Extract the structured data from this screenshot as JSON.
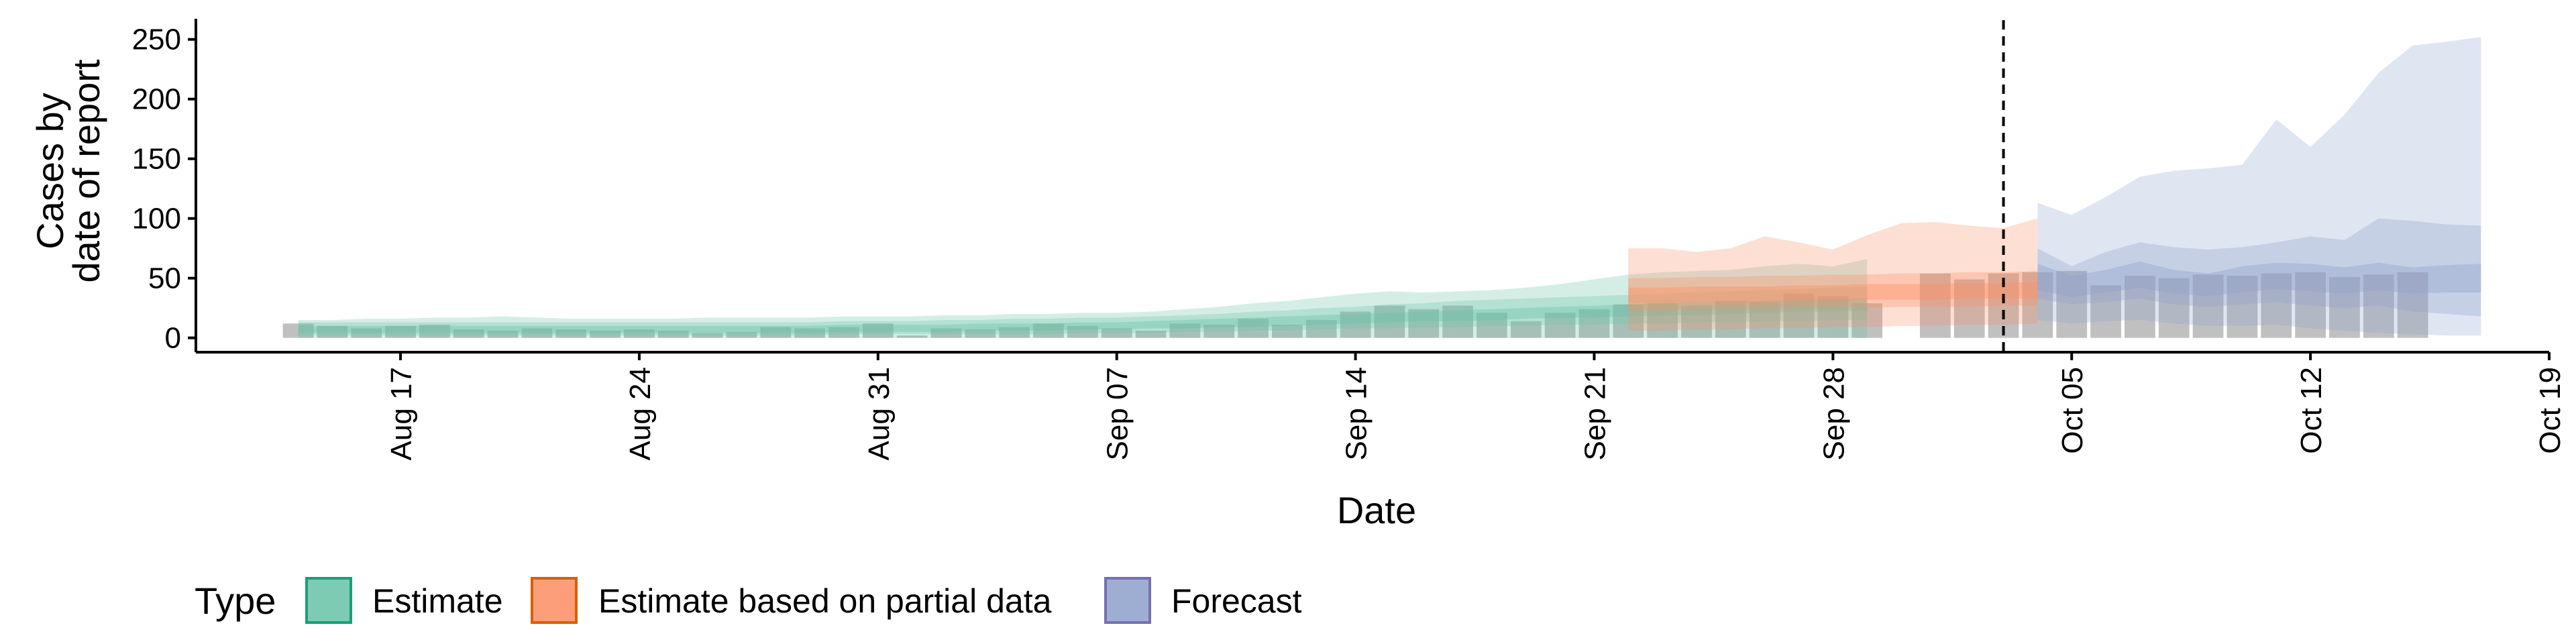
{
  "chart_data": {
    "type": "bar+area",
    "xlabel": "Date",
    "ylabel_lines": [
      "Cases by",
      "date of report"
    ],
    "ylim": [
      -12,
      265
    ],
    "y_ticks": [
      0,
      50,
      100,
      150,
      200,
      250
    ],
    "x_ticks": [
      {
        "date": "2020-08-17",
        "label": "Aug 17"
      },
      {
        "date": "2020-08-24",
        "label": "Aug 24"
      },
      {
        "date": "2020-08-31",
        "label": "Aug 31"
      },
      {
        "date": "2020-09-07",
        "label": "Sep 07"
      },
      {
        "date": "2020-09-14",
        "label": "Sep 14"
      },
      {
        "date": "2020-09-21",
        "label": "Sep 21"
      },
      {
        "date": "2020-09-28",
        "label": "Sep 28"
      },
      {
        "date": "2020-10-05",
        "label": "Oct 05"
      },
      {
        "date": "2020-10-12",
        "label": "Oct 12"
      },
      {
        "date": "2020-10-19",
        "label": "Oct 19"
      }
    ],
    "xlim": [
      "2020-08-11",
      "2020-10-19"
    ],
    "forecast_date": "2020-10-03",
    "bar_color": "#bdbdbd",
    "bars": {
      "start_date": "2020-08-14",
      "values": [
        12,
        10,
        8,
        10,
        11,
        7,
        6,
        8,
        7,
        6,
        7,
        6,
        4,
        5,
        9,
        8,
        9,
        12,
        2,
        8,
        7,
        9,
        12,
        10,
        8,
        6,
        12,
        11,
        16,
        11,
        15,
        22,
        27,
        24,
        27,
        21,
        14,
        21,
        24,
        28,
        29,
        27,
        31,
        30,
        37,
        35,
        29,
        0,
        54,
        49,
        54,
        55,
        56,
        44,
        52,
        50,
        53,
        52,
        54,
        55,
        51,
        53,
        55
      ]
    },
    "series": [
      {
        "name": "Estimate",
        "color": "#1b9e77",
        "fill": "#66c2a5",
        "start_date": "2020-08-14",
        "median": [
          7,
          7,
          7,
          7,
          7,
          7,
          7,
          7,
          7,
          7,
          7,
          7,
          7,
          7,
          7,
          7,
          8,
          8,
          8,
          8,
          9,
          9,
          9,
          10,
          10,
          11,
          11,
          12,
          13,
          14,
          15,
          16,
          17,
          18,
          19,
          19,
          20,
          21,
          22,
          23,
          24,
          24,
          25,
          26,
          27,
          27,
          28
        ],
        "inner_low": [
          4,
          4,
          4,
          4,
          4,
          4,
          4,
          4,
          4,
          4,
          4,
          4,
          4,
          4,
          4,
          4,
          5,
          5,
          5,
          5,
          6,
          6,
          6,
          7,
          7,
          8,
          8,
          9,
          9,
          10,
          11,
          12,
          13,
          14,
          14,
          15,
          16,
          17,
          17,
          18,
          19,
          19,
          20,
          21,
          22,
          22,
          23
        ],
        "inner_high": [
          10,
          10,
          10,
          10,
          10,
          10,
          10,
          10,
          10,
          10,
          10,
          10,
          10,
          10,
          10,
          10,
          11,
          11,
          11,
          11,
          12,
          12,
          12,
          13,
          13,
          14,
          15,
          16,
          17,
          18,
          19,
          20,
          21,
          22,
          23,
          24,
          25,
          26,
          27,
          28,
          29,
          30,
          30,
          31,
          32,
          32,
          33
        ],
        "mid_low": [
          2,
          2,
          2,
          2,
          2,
          2,
          2,
          2,
          2,
          2,
          2,
          2,
          2,
          2,
          2,
          2,
          3,
          3,
          3,
          3,
          3,
          3,
          3,
          4,
          4,
          4,
          5,
          5,
          6,
          6,
          7,
          8,
          8,
          9,
          9,
          10,
          10,
          11,
          11,
          12,
          12,
          13,
          13,
          14,
          14,
          15,
          15
        ],
        "mid_high": [
          13,
          13,
          13,
          13,
          13,
          13,
          13,
          13,
          13,
          13,
          13,
          13,
          13,
          13,
          13,
          13,
          14,
          14,
          14,
          15,
          15,
          16,
          16,
          17,
          17,
          18,
          19,
          20,
          22,
          23,
          25,
          26,
          28,
          29,
          31,
          32,
          33,
          34,
          35,
          36,
          37,
          38,
          39,
          40,
          41,
          42,
          43
        ],
        "outer_low": [
          0,
          0,
          0,
          0,
          0,
          0,
          0,
          0,
          0,
          0,
          0,
          0,
          0,
          0,
          0,
          0,
          0,
          0,
          0,
          0,
          0,
          0,
          0,
          0,
          0,
          0,
          0,
          0,
          0,
          0,
          0,
          0,
          0,
          0,
          0,
          0,
          0,
          0,
          0,
          0,
          0,
          0,
          0,
          0,
          0,
          0,
          0
        ],
        "outer_high": [
          15,
          15,
          16,
          16,
          17,
          17,
          18,
          17,
          16,
          16,
          16,
          16,
          17,
          17,
          17,
          17,
          18,
          18,
          18,
          19,
          19,
          20,
          20,
          21,
          21,
          22,
          24,
          26,
          29,
          31,
          34,
          37,
          39,
          38,
          39,
          40,
          42,
          45,
          49,
          53,
          55,
          56,
          57,
          60,
          62,
          60,
          66
        ]
      },
      {
        "name": "Estimate based on partial data",
        "color": "#d95f02",
        "fill": "#fc8d62",
        "start_date": "2020-09-22",
        "median": [
          35,
          35,
          36,
          36,
          36,
          37,
          37,
          38,
          38,
          38,
          39,
          39,
          40
        ],
        "inner_low": [
          29,
          29,
          30,
          30,
          30,
          31,
          31,
          32,
          32,
          32,
          33,
          33,
          33
        ],
        "inner_high": [
          42,
          42,
          43,
          43,
          43,
          44,
          44,
          45,
          45,
          45,
          46,
          46,
          47
        ],
        "mid_low": [
          23,
          23,
          24,
          24,
          24,
          25,
          25,
          25,
          26,
          26,
          26,
          27,
          27
        ],
        "mid_high": [
          50,
          50,
          51,
          51,
          52,
          52,
          53,
          53,
          54,
          54,
          55,
          55,
          56
        ],
        "outer_low": [
          6,
          6,
          7,
          7,
          8,
          8,
          9,
          9,
          10,
          10,
          11,
          11,
          12
        ],
        "outer_high": [
          75,
          75,
          72,
          75,
          85,
          80,
          74,
          86,
          96,
          97,
          94,
          92,
          100
        ]
      },
      {
        "name": "Forecast",
        "color": "#7570b3",
        "fill": "#8da0cb",
        "start_date": "2020-10-04",
        "median": [
          50,
          42,
          47,
          53,
          47,
          44,
          49,
          52,
          50,
          48,
          51,
          48,
          49,
          50
        ],
        "inner_low": [
          40,
          34,
          38,
          42,
          37,
          35,
          38,
          41,
          39,
          37,
          40,
          37,
          38,
          38
        ],
        "inner_high": [
          62,
          52,
          57,
          64,
          57,
          54,
          60,
          63,
          62,
          59,
          63,
          59,
          61,
          62
        ],
        "mid_low": [
          33,
          28,
          30,
          33,
          28,
          26,
          28,
          30,
          27,
          25,
          27,
          22,
          20,
          18
        ],
        "mid_high": [
          75,
          60,
          72,
          80,
          76,
          74,
          76,
          80,
          85,
          82,
          100,
          98,
          95,
          94
        ],
        "outer_low": [
          15,
          12,
          14,
          15,
          12,
          10,
          10,
          11,
          8,
          6,
          4,
          3,
          2,
          2
        ],
        "outer_high": [
          113,
          103,
          118,
          135,
          140,
          142,
          145,
          183,
          160,
          187,
          222,
          245,
          248,
          252
        ]
      }
    ],
    "legend": {
      "title": "Type",
      "position": "bottom",
      "entries": [
        {
          "label": "Estimate",
          "fill": "#66c2a5",
          "stroke": "#1b9e77"
        },
        {
          "label": "Estimate based on partial data",
          "fill": "#fc8d62",
          "stroke": "#d95f02"
        },
        {
          "label": "Forecast",
          "fill": "#8da0cb",
          "stroke": "#7570b3"
        }
      ]
    }
  }
}
